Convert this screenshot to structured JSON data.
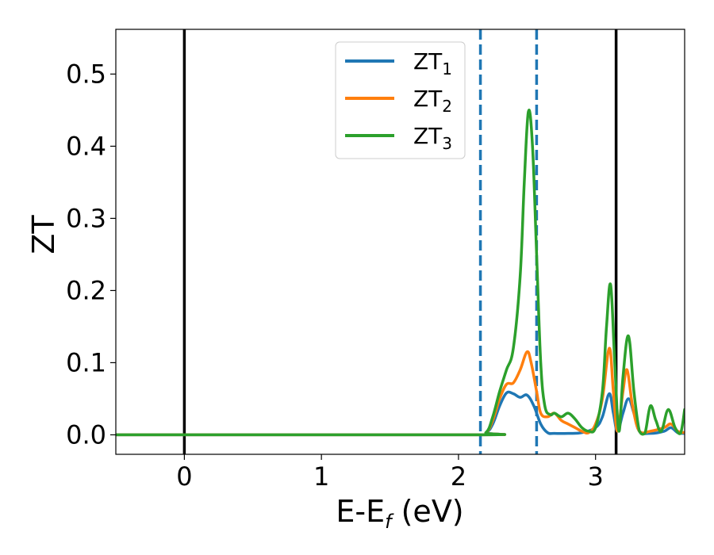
{
  "chart_data": {
    "type": "line",
    "title": "",
    "xlabel_main": "E-E",
    "xlabel_sub": "f",
    "xlabel_tail": " (eV)",
    "ylabel": "ZT",
    "xlim": [
      -0.5,
      3.65
    ],
    "ylim": [
      -0.027,
      0.562
    ],
    "xticks": [
      0,
      1,
      2,
      3
    ],
    "xtick_labels": [
      "0",
      "1",
      "2",
      "3"
    ],
    "yticks": [
      0.0,
      0.1,
      0.2,
      0.3,
      0.4,
      0.5
    ],
    "ytick_labels": [
      "0.0",
      "0.1",
      "0.2",
      "0.3",
      "0.4",
      "0.5"
    ],
    "grid": false,
    "legend_position": "top-center",
    "vlines": [
      {
        "x": 0.0,
        "style": "solid",
        "color": "#000000"
      },
      {
        "x": 3.15,
        "style": "solid",
        "color": "#000000"
      },
      {
        "x": 2.16,
        "style": "dashed",
        "color": "#1f77b4"
      },
      {
        "x": 2.57,
        "style": "dashed",
        "color": "#1f77b4"
      }
    ],
    "series": [
      {
        "name": "ZT",
        "subscript": "1",
        "color": "#1f77b4",
        "x": [
          -0.5,
          2.1,
          2.2,
          2.25,
          2.3,
          2.35,
          2.4,
          2.45,
          2.5,
          2.55,
          2.6,
          2.65,
          2.7,
          2.8,
          2.9,
          3.0,
          3.05,
          3.1,
          3.13,
          3.16,
          3.2,
          3.24,
          3.28,
          3.32,
          3.4,
          3.5,
          3.55,
          3.6,
          3.65
        ],
        "y": [
          0.0,
          0.0,
          0.003,
          0.015,
          0.04,
          0.058,
          0.057,
          0.052,
          0.055,
          0.04,
          0.015,
          0.003,
          0.002,
          0.002,
          0.003,
          0.01,
          0.025,
          0.057,
          0.03,
          0.005,
          0.03,
          0.05,
          0.03,
          0.005,
          0.002,
          0.005,
          0.01,
          0.003,
          0.002
        ]
      },
      {
        "name": "ZT",
        "subscript": "2",
        "color": "#ff7f0e",
        "x": [
          -0.5,
          2.1,
          2.2,
          2.25,
          2.3,
          2.35,
          2.4,
          2.45,
          2.5,
          2.53,
          2.57,
          2.6,
          2.65,
          2.7,
          2.75,
          2.8,
          2.85,
          2.9,
          2.95,
          3.0,
          3.05,
          3.1,
          3.13,
          3.16,
          3.2,
          3.23,
          3.27,
          3.32,
          3.4,
          3.5,
          3.55,
          3.6,
          3.65
        ],
        "y": [
          0.0,
          0.0,
          0.003,
          0.02,
          0.05,
          0.07,
          0.072,
          0.09,
          0.115,
          0.1,
          0.06,
          0.03,
          0.025,
          0.03,
          0.02,
          0.015,
          0.01,
          0.005,
          0.003,
          0.015,
          0.05,
          0.12,
          0.06,
          0.005,
          0.06,
          0.09,
          0.04,
          0.005,
          0.005,
          0.01,
          0.015,
          0.005,
          0.003
        ]
      },
      {
        "name": "ZT",
        "subscript": "3",
        "color": "#2ca02c",
        "x": [
          -0.5,
          2.1,
          2.2,
          2.25,
          2.3,
          2.35,
          2.4,
          2.45,
          2.48,
          2.51,
          2.54,
          2.57,
          2.6,
          2.63,
          2.67,
          2.7,
          2.75,
          2.8,
          2.85,
          2.9,
          2.95,
          3.0,
          3.05,
          3.08,
          3.11,
          3.14,
          3.17,
          3.2,
          3.24,
          3.28,
          3.32,
          3.36,
          3.4,
          3.44,
          3.48,
          3.53,
          3.58,
          3.62,
          3.65
        ],
        "y": [
          0.0,
          0.0,
          0.003,
          0.025,
          0.06,
          0.09,
          0.12,
          0.22,
          0.35,
          0.448,
          0.4,
          0.25,
          0.1,
          0.04,
          0.028,
          0.03,
          0.025,
          0.03,
          0.022,
          0.01,
          0.005,
          0.01,
          0.06,
          0.15,
          0.208,
          0.1,
          0.005,
          0.08,
          0.137,
          0.06,
          0.005,
          0.002,
          0.04,
          0.02,
          0.005,
          0.035,
          0.01,
          0.002,
          0.035
        ]
      }
    ]
  }
}
